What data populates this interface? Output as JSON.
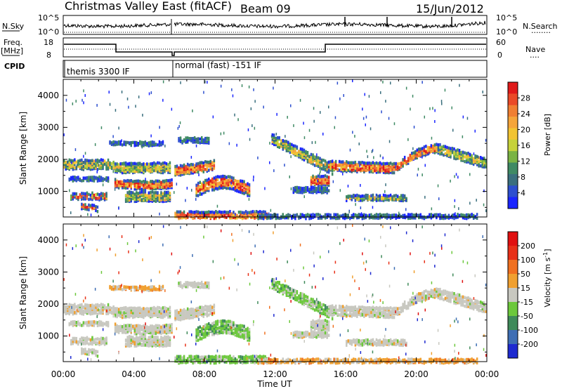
{
  "header": {
    "station": "Christmas Valley East (fitACF)",
    "beam": "Beam 09",
    "date": "15/Jun/2012"
  },
  "top_strip": {
    "left_label": "N.Sky",
    "left_ticks": [
      "10^5",
      "10^0"
    ],
    "right_ticks": [
      "10^5",
      "10^0"
    ],
    "right_label": "N.Search",
    "right_dots": "........"
  },
  "freq_strip": {
    "left_label_1": "Freq.",
    "left_label_2": "[MHz]",
    "left_ticks": [
      "18",
      "8"
    ],
    "right_ticks": [
      "60",
      "0"
    ],
    "right_label": "Nave",
    "right_dots": "....",
    "cpid_label": "CPID",
    "modes": [
      "themis 3300 IF",
      "normal (fast) -151 IF"
    ]
  },
  "chart_data": [
    {
      "type": "heatmap",
      "panel": "power",
      "ylabel": "Slant Range [km]",
      "xlabel": "Time UT",
      "yticks": [
        "4000",
        "3000",
        "2000",
        "1000"
      ],
      "xticks": [
        "00:00",
        "04:00",
        "08:00",
        "12:00",
        "16:00",
        "20:00",
        "00:00"
      ],
      "colorbar": {
        "label": "Power [dB]",
        "ticks": [
          "28",
          "24",
          "20",
          "16",
          "12",
          "8",
          "4"
        ],
        "colors": [
          "#1a25ff",
          "#2d4fcf",
          "#3a6f7e",
          "#3f8a64",
          "#7ab344",
          "#c6d23a",
          "#f2c432",
          "#f5a53a",
          "#f07f32",
          "#ea4a28",
          "#e01a1a"
        ]
      }
    },
    {
      "type": "heatmap",
      "panel": "velocity",
      "ylabel": "Slant Range [km]",
      "xlabel": "Time UT",
      "yticks": [
        "4000",
        "3000",
        "2000",
        "1000"
      ],
      "xticks": [
        "00:00",
        "04:00",
        "08:00",
        "12:00",
        "16:00",
        "20:00",
        "00:00"
      ],
      "colorbar": {
        "label": "Velocity [m s^-1]",
        "ticks": [
          "200",
          "100",
          "50",
          "15",
          "-15",
          "-50",
          "-100",
          "-200"
        ],
        "colors": [
          "#1e2ad0",
          "#3e6eb4",
          "#3f8a5a",
          "#6cc83c",
          "#c8c8c0",
          "#f0a030",
          "#f07020",
          "#e83018",
          "#e01010"
        ]
      }
    }
  ],
  "axis": {
    "xlabel": "Time UT"
  }
}
